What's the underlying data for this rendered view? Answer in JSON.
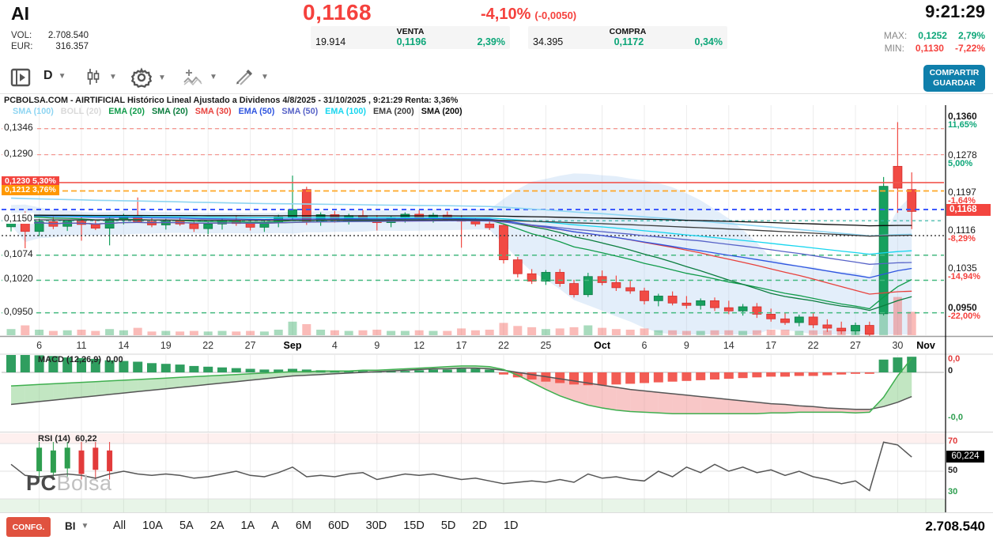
{
  "header": {
    "symbol": "AI",
    "price": "0,1168",
    "change_pct": "-4,10%",
    "change_abs": "(-0,0050)",
    "time": "9:21:29",
    "vol_label": "VOL:",
    "vol_value": "2.708.540",
    "eur_label": "EUR:",
    "eur_value": "316.357",
    "venta": {
      "title": "VENTA",
      "size": "19.914",
      "price": "0,1196",
      "pct": "2,39%"
    },
    "compra": {
      "title": "COMPRA",
      "size": "34.395",
      "price": "0,1172",
      "pct": "0,34%"
    },
    "max": {
      "label": "MAX:",
      "price": "0,1252",
      "pct": "2,79%"
    },
    "min": {
      "label": "MIN:",
      "price": "0,1130",
      "pct": "-7,22%"
    }
  },
  "toolbar": {
    "timeframe": "D",
    "share_label": "COMPARTIR",
    "save_label": "GUARDAR"
  },
  "chart": {
    "title": "PCBOLSA.COM - AIRTIFICIAL Histórico Lineal Ajustado a Dividenos 4/8/2025 - 31/10/2025 , 9:21:29 Renta: 3,36%",
    "legend": [
      {
        "label": "SMA (100)",
        "color": "#8ed5f2",
        "key": "sma100"
      },
      {
        "label": "BOLL (20)",
        "color": "#d9d9d9",
        "key": "boll"
      },
      {
        "label": "EMA (20)",
        "color": "#109b4a",
        "key": "ema20"
      },
      {
        "label": "SMA (20)",
        "color": "#0b7d3e",
        "key": "sma20"
      },
      {
        "label": "SMA (30)",
        "color": "#e8413c",
        "key": "sma30"
      },
      {
        "label": "EMA (50)",
        "color": "#2f55e0",
        "key": "ema50"
      },
      {
        "label": "SMA (50)",
        "color": "#5763c8",
        "key": "sma50"
      },
      {
        "label": "EMA (100)",
        "color": "#17d6ef",
        "key": "ema100"
      },
      {
        "label": "EMA (200)",
        "color": "#3c3c3c",
        "key": "ema200"
      },
      {
        "label": "SMA (200)",
        "color": "#0a0a0a",
        "key": "sma200"
      }
    ],
    "left_axis": [
      {
        "text": "0,1346",
        "p": 0.1346
      },
      {
        "text": "0,1290",
        "p": 0.129
      },
      {
        "text": "0,1150",
        "p": 0.115
      },
      {
        "text": "0,1074",
        "p": 0.1074
      },
      {
        "text": "0,1020",
        "p": 0.102
      },
      {
        "text": "0,0950",
        "p": 0.095
      }
    ],
    "left_badges": [
      {
        "price": "0,1230",
        "pct": "5,30%",
        "p": 0.123,
        "bg": "#f3453f"
      },
      {
        "price": "0,1212",
        "pct": "3,76%",
        "p": 0.1212,
        "bg": "#ff9800"
      }
    ],
    "right_axis": [
      {
        "price": "0,1360",
        "pct": "11,65%",
        "p": 0.136,
        "pos": true,
        "bold": true
      },
      {
        "price": "0,1278",
        "pct": "5,00%",
        "p": 0.1278,
        "pos": true,
        "bold": false
      },
      {
        "price": "0,1197",
        "pct": "-1,64%",
        "p": 0.1197,
        "pos": false,
        "bold": false
      },
      {
        "price": "0,1116",
        "pct": "-8,29%",
        "p": 0.1116,
        "pos": false,
        "bold": false
      },
      {
        "price": "0,1035",
        "pct": "-14,94%",
        "p": 0.1035,
        "pos": false,
        "bold": false
      },
      {
        "price": "0,0950",
        "pct": "-22,00%",
        "p": 0.095,
        "pos": false,
        "bold": true
      }
    ],
    "current_badge": "0,1168",
    "pct_up_color": "#0ca678",
    "pct_down_color": "#f5413d"
  },
  "macd_panel": {
    "label": "MACD (12,26,9)",
    "value": "0,00",
    "ax_top": "0,0",
    "ax_zero": "0",
    "ax_bottom": "-0,0"
  },
  "rsi_panel": {
    "label": "RSI (14)",
    "value": "60,22",
    "ax_70": "70",
    "ax_value": "60,224",
    "ax_50": "50",
    "ax_30": "30"
  },
  "watermark": {
    "bold": "PC",
    "light": "Bolsa"
  },
  "bottom": {
    "confg": "CONFG.",
    "index": "BI",
    "ranges": [
      "All",
      "10A",
      "5A",
      "2A",
      "1A",
      "A",
      "6M",
      "60D",
      "30D",
      "15D",
      "5D",
      "2D",
      "1D"
    ],
    "volume": "2.708.540"
  },
  "chart_data": {
    "type": "candlestick",
    "title": "AIRTIFICIAL daily, 4/8/2025 - 31/10/2025",
    "colors": {
      "up": "#17a05e",
      "down": "#f14b44",
      "up_border": "#0c7a45",
      "down_border": "#d32f2f",
      "vol_up": "rgba(38,166,91,0.40)",
      "vol_down": "rgba(241,76,69,0.38)",
      "boll_fill": "#aecdf0",
      "macd_line": "#555555",
      "macd_signal": "#3faf4f",
      "rsi_line": "#555555"
    },
    "x_dates": [
      "4/8",
      "5/8",
      "6/8",
      "7/8",
      "8/8",
      "11/8",
      "12/8",
      "13/8",
      "14/8",
      "15/8",
      "18/8",
      "19/8",
      "20/8",
      "21/8",
      "22/8",
      "25/8",
      "26/8",
      "27/8",
      "28/8",
      "29/8",
      "1/9",
      "2/9",
      "3/9",
      "4/9",
      "5/9",
      "8/9",
      "9/9",
      "10/9",
      "11/9",
      "12/9",
      "15/9",
      "16/9",
      "17/9",
      "18/9",
      "19/9",
      "22/9",
      "23/9",
      "24/9",
      "25/9",
      "26/9",
      "29/9",
      "30/9",
      "1/10",
      "2/10",
      "3/10",
      "6/10",
      "7/10",
      "8/10",
      "9/10",
      "10/10",
      "13/10",
      "14/10",
      "15/10",
      "16/10",
      "17/10",
      "20/10",
      "21/10",
      "22/10",
      "23/10",
      "24/10",
      "27/10",
      "28/10",
      "29/10",
      "30/10",
      "31/10"
    ],
    "x_ticks": [
      [
        "6",
        2
      ],
      [
        "11",
        5
      ],
      [
        "14",
        8
      ],
      [
        "19",
        11
      ],
      [
        "22",
        14
      ],
      [
        "27",
        17
      ],
      [
        "Sep",
        20
      ],
      [
        "4",
        23
      ],
      [
        "9",
        26
      ],
      [
        "12",
        29
      ],
      [
        "17",
        32
      ],
      [
        "22",
        35
      ],
      [
        "25",
        38
      ],
      [
        "Oct",
        42
      ],
      [
        "6",
        45
      ],
      [
        "9",
        48
      ],
      [
        "14",
        51
      ],
      [
        "17",
        54
      ],
      [
        "22",
        57
      ],
      [
        "27",
        60
      ],
      [
        "30",
        63
      ],
      [
        "Nov",
        65
      ]
    ],
    "candles": [
      [
        0.1135,
        0.1165,
        0.1125,
        0.116,
        0.1
      ],
      [
        0.116,
        0.1168,
        0.108,
        0.1125,
        0.16
      ],
      [
        0.1125,
        0.1152,
        0.1115,
        0.1146,
        0.09
      ],
      [
        0.1146,
        0.1156,
        0.113,
        0.1136,
        0.07
      ],
      [
        0.1136,
        0.115,
        0.1126,
        0.1148,
        0.08
      ],
      [
        0.1148,
        0.1156,
        0.1105,
        0.114,
        0.09
      ],
      [
        0.114,
        0.115,
        0.1128,
        0.1132,
        0.07
      ],
      [
        0.1132,
        0.1158,
        0.1095,
        0.1152,
        0.1
      ],
      [
        0.1152,
        0.1163,
        0.114,
        0.1158,
        0.08
      ],
      [
        0.1158,
        0.1198,
        0.1143,
        0.1146,
        0.12
      ],
      [
        0.1146,
        0.1154,
        0.1134,
        0.1139,
        0.06
      ],
      [
        0.1139,
        0.1152,
        0.1129,
        0.1148,
        0.07
      ],
      [
        0.1148,
        0.1156,
        0.1137,
        0.1141,
        0.06
      ],
      [
        0.1141,
        0.1149,
        0.1124,
        0.1131,
        0.07
      ],
      [
        0.1131,
        0.1146,
        0.1119,
        0.1141,
        0.06
      ],
      [
        0.1141,
        0.1153,
        0.1129,
        0.1149,
        0.07
      ],
      [
        0.1149,
        0.1159,
        0.1137,
        0.1142,
        0.06
      ],
      [
        0.1142,
        0.115,
        0.1127,
        0.1134,
        0.07
      ],
      [
        0.1134,
        0.1148,
        0.1124,
        0.1145,
        0.06
      ],
      [
        0.1145,
        0.1161,
        0.1134,
        0.1156,
        0.09
      ],
      [
        0.1156,
        0.1245,
        0.1148,
        0.1172,
        0.22
      ],
      [
        0.1215,
        0.1221,
        0.1139,
        0.1147,
        0.18
      ],
      [
        0.1147,
        0.1166,
        0.1137,
        0.1161,
        0.09
      ],
      [
        0.1161,
        0.1169,
        0.1144,
        0.115,
        0.08
      ],
      [
        0.115,
        0.1163,
        0.114,
        0.1159,
        0.07
      ],
      [
        0.1159,
        0.1171,
        0.1147,
        0.1151,
        0.08
      ],
      [
        0.1151,
        0.116,
        0.1127,
        0.1144,
        0.09
      ],
      [
        0.1144,
        0.1158,
        0.1134,
        0.1155,
        0.07
      ],
      [
        0.1155,
        0.1166,
        0.1144,
        0.1162,
        0.07
      ],
      [
        0.1162,
        0.1171,
        0.1149,
        0.1154,
        0.08
      ],
      [
        0.1154,
        0.1165,
        0.1144,
        0.116,
        0.07
      ],
      [
        0.116,
        0.1168,
        0.1147,
        0.1151,
        0.07
      ],
      [
        0.1151,
        0.116,
        0.109,
        0.1147,
        0.11
      ],
      [
        0.1147,
        0.1154,
        0.1136,
        0.1141,
        0.08
      ],
      [
        0.1141,
        0.1149,
        0.1128,
        0.1133,
        0.09
      ],
      [
        0.1138,
        0.1142,
        0.1056,
        0.1064,
        0.2
      ],
      [
        0.1064,
        0.107,
        0.1026,
        0.1034,
        0.15
      ],
      [
        0.1034,
        0.1044,
        0.1012,
        0.1018,
        0.13
      ],
      [
        0.1018,
        0.1042,
        0.101,
        0.1037,
        0.1
      ],
      [
        0.1037,
        0.1044,
        0.1006,
        0.1013,
        0.11
      ],
      [
        0.1013,
        0.1021,
        0.0983,
        0.0989,
        0.13
      ],
      [
        0.0989,
        0.1036,
        0.0984,
        0.1028,
        0.16
      ],
      [
        0.1028,
        0.1041,
        0.1009,
        0.1015,
        0.12
      ],
      [
        0.1015,
        0.103,
        0.0997,
        0.1004,
        0.1
      ],
      [
        0.1004,
        0.1019,
        0.0991,
        0.0997,
        0.09
      ],
      [
        0.0997,
        0.1004,
        0.0968,
        0.0976,
        0.11
      ],
      [
        0.0976,
        0.0991,
        0.0964,
        0.0986,
        0.08
      ],
      [
        0.0986,
        0.0996,
        0.0966,
        0.0971,
        0.08
      ],
      [
        0.0971,
        0.0986,
        0.0959,
        0.0966,
        0.07
      ],
      [
        0.0966,
        0.0981,
        0.0957,
        0.0976,
        0.07
      ],
      [
        0.0976,
        0.0983,
        0.0954,
        0.0961,
        0.08
      ],
      [
        0.0961,
        0.0976,
        0.0947,
        0.0954,
        0.08
      ],
      [
        0.0954,
        0.0969,
        0.0944,
        0.0963,
        0.07
      ],
      [
        0.0963,
        0.0971,
        0.0939,
        0.0947,
        0.08
      ],
      [
        0.0947,
        0.0959,
        0.0931,
        0.0937,
        0.09
      ],
      [
        0.0937,
        0.0951,
        0.0924,
        0.0929,
        0.09
      ],
      [
        0.0929,
        0.0946,
        0.0921,
        0.0941,
        0.07
      ],
      [
        0.0941,
        0.0949,
        0.0917,
        0.0924,
        0.08
      ],
      [
        0.0924,
        0.0936,
        0.0909,
        0.0917,
        0.08
      ],
      [
        0.0917,
        0.0931,
        0.0904,
        0.0911,
        0.09
      ],
      [
        0.0911,
        0.0929,
        0.0903,
        0.0923,
        0.08
      ],
      [
        0.0923,
        0.0931,
        0.0889,
        0.0904,
        0.11
      ],
      [
        0.0948,
        0.1242,
        0.0944,
        0.1222,
        0.55
      ],
      [
        0.1265,
        0.136,
        0.1165,
        0.1218,
        0.62
      ],
      [
        0.1215,
        0.1252,
        0.113,
        0.1168,
        0.38
      ]
    ],
    "levels": [
      {
        "p": 0.1346,
        "color": "#f49a93",
        "w": 1.3,
        "dash": "5 4"
      },
      {
        "p": 0.129,
        "color": "#f49a93",
        "w": 1.3,
        "dash": "5 4"
      },
      {
        "p": 0.123,
        "color": "#f2574f",
        "w": 1.6,
        "dash": ""
      },
      {
        "p": 0.1212,
        "color": "#ffa726",
        "w": 1.8,
        "dash": "7 4"
      },
      {
        "p": 0.1172,
        "color": "#3d5afe",
        "w": 2.0,
        "dash": "6 5"
      },
      {
        "p": 0.1148,
        "color": "#2bb3a3",
        "w": 1.2,
        "dash": "4 4"
      },
      {
        "p": 0.1116,
        "color": "#444444",
        "w": 1.6,
        "dash": "2 3"
      },
      {
        "p": 0.1074,
        "color": "#43b97f",
        "w": 1.5,
        "dash": "6 5"
      },
      {
        "p": 0.102,
        "color": "#43b97f",
        "w": 1.5,
        "dash": "6 5"
      },
      {
        "p": 0.095,
        "color": "#43b97f",
        "w": 1.5,
        "dash": "6 5"
      }
    ],
    "macd": {
      "hist": [
        0.0026,
        0.0025,
        0.0024,
        0.0023,
        0.0021,
        0.002,
        0.0019,
        0.0017,
        0.0016,
        0.0015,
        0.0013,
        0.0012,
        0.0011,
        0.0009,
        0.0008,
        0.0007,
        0.0006,
        0.0005,
        0.0004,
        0.0004,
        0.0005,
        0.0004,
        0.0003,
        0.0002,
        0.0002,
        0.0002,
        0.0001,
        0.0002,
        0.0002,
        0.0003,
        0.0004,
        0.0004,
        0.0005,
        0.0005,
        0.0004,
        -0.0003,
        -0.0007,
        -0.001,
        -0.0013,
        -0.0015,
        -0.0017,
        -0.0018,
        -0.0018,
        -0.0017,
        -0.0016,
        -0.0015,
        -0.0014,
        -0.0013,
        -0.0012,
        -0.0011,
        -0.001,
        -0.0009,
        -0.0008,
        -0.0007,
        -0.0006,
        -0.0006,
        -0.0005,
        -0.0005,
        -0.0004,
        -0.0003,
        -0.0002,
        -0.0002,
        0.0018,
        0.0021,
        0.0022
      ],
      "macd_line": [
        -0.0045,
        -0.0043,
        -0.0041,
        -0.0039,
        -0.0037,
        -0.0035,
        -0.0033,
        -0.0031,
        -0.0029,
        -0.0027,
        -0.0025,
        -0.0023,
        -0.0021,
        -0.0019,
        -0.0017,
        -0.0015,
        -0.0013,
        -0.0011,
        -0.0009,
        -0.0007,
        -0.0005,
        -0.0004,
        -0.0003,
        -0.0002,
        -0.0001,
        0.0,
        0.0001,
        0.0002,
        0.0003,
        0.0004,
        0.0005,
        0.0005,
        0.0006,
        0.0006,
        0.0005,
        0.0003,
        0.0,
        -0.0003,
        -0.0006,
        -0.0009,
        -0.0012,
        -0.0015,
        -0.0018,
        -0.0021,
        -0.0024,
        -0.0026,
        -0.0028,
        -0.003,
        -0.0032,
        -0.0034,
        -0.0036,
        -0.0038,
        -0.004,
        -0.0042,
        -0.0044,
        -0.0045,
        -0.0047,
        -0.0048,
        -0.005,
        -0.0051,
        -0.0052,
        -0.0052,
        -0.0048,
        -0.0042,
        -0.0034
      ],
      "signal_line": [
        -0.0019,
        -0.0018,
        -0.0017,
        -0.0016,
        -0.0015,
        -0.0014,
        -0.0013,
        -0.0012,
        -0.0011,
        -0.001,
        -0.0009,
        -0.0008,
        -0.0007,
        -0.0006,
        -0.0005,
        -0.0004,
        -0.0003,
        -0.0002,
        -0.0001,
        0.0,
        0.0001,
        0.0001,
        0.0002,
        0.0002,
        0.0002,
        0.0003,
        0.0003,
        0.0004,
        0.0005,
        0.0006,
        0.0007,
        0.0008,
        0.0009,
        0.0009,
        0.0008,
        0.0004,
        -0.0004,
        -0.0014,
        -0.0024,
        -0.0033,
        -0.004,
        -0.0046,
        -0.005,
        -0.0053,
        -0.0055,
        -0.0056,
        -0.0057,
        -0.0058,
        -0.0058,
        -0.0058,
        -0.0058,
        -0.0058,
        -0.0058,
        -0.0058,
        -0.0057,
        -0.0057,
        -0.0056,
        -0.0056,
        -0.0056,
        -0.0056,
        -0.0057,
        -0.0056,
        -0.0035,
        -0.0005,
        0.002
      ]
    },
    "rsi": {
      "values": [
        55,
        47,
        46,
        47,
        48,
        47,
        45,
        48,
        50,
        48,
        47,
        48,
        47,
        45,
        46,
        48,
        50,
        47,
        46,
        49,
        53,
        46,
        47,
        46,
        48,
        49,
        44,
        46,
        48,
        47,
        48,
        46,
        44,
        45,
        43,
        41,
        42,
        43,
        42,
        44,
        42,
        48,
        45,
        46,
        44,
        43,
        50,
        46,
        53,
        49,
        55,
        50,
        53,
        49,
        51,
        47,
        50,
        46,
        44,
        41,
        43,
        36,
        71,
        69,
        60.2
      ],
      "overbought": 70,
      "midline": 50,
      "oversold": 30,
      "marks": {
        "start": 2,
        "items": [
          "g",
          "g",
          "g",
          "r",
          "r",
          "r"
        ]
      }
    }
  }
}
